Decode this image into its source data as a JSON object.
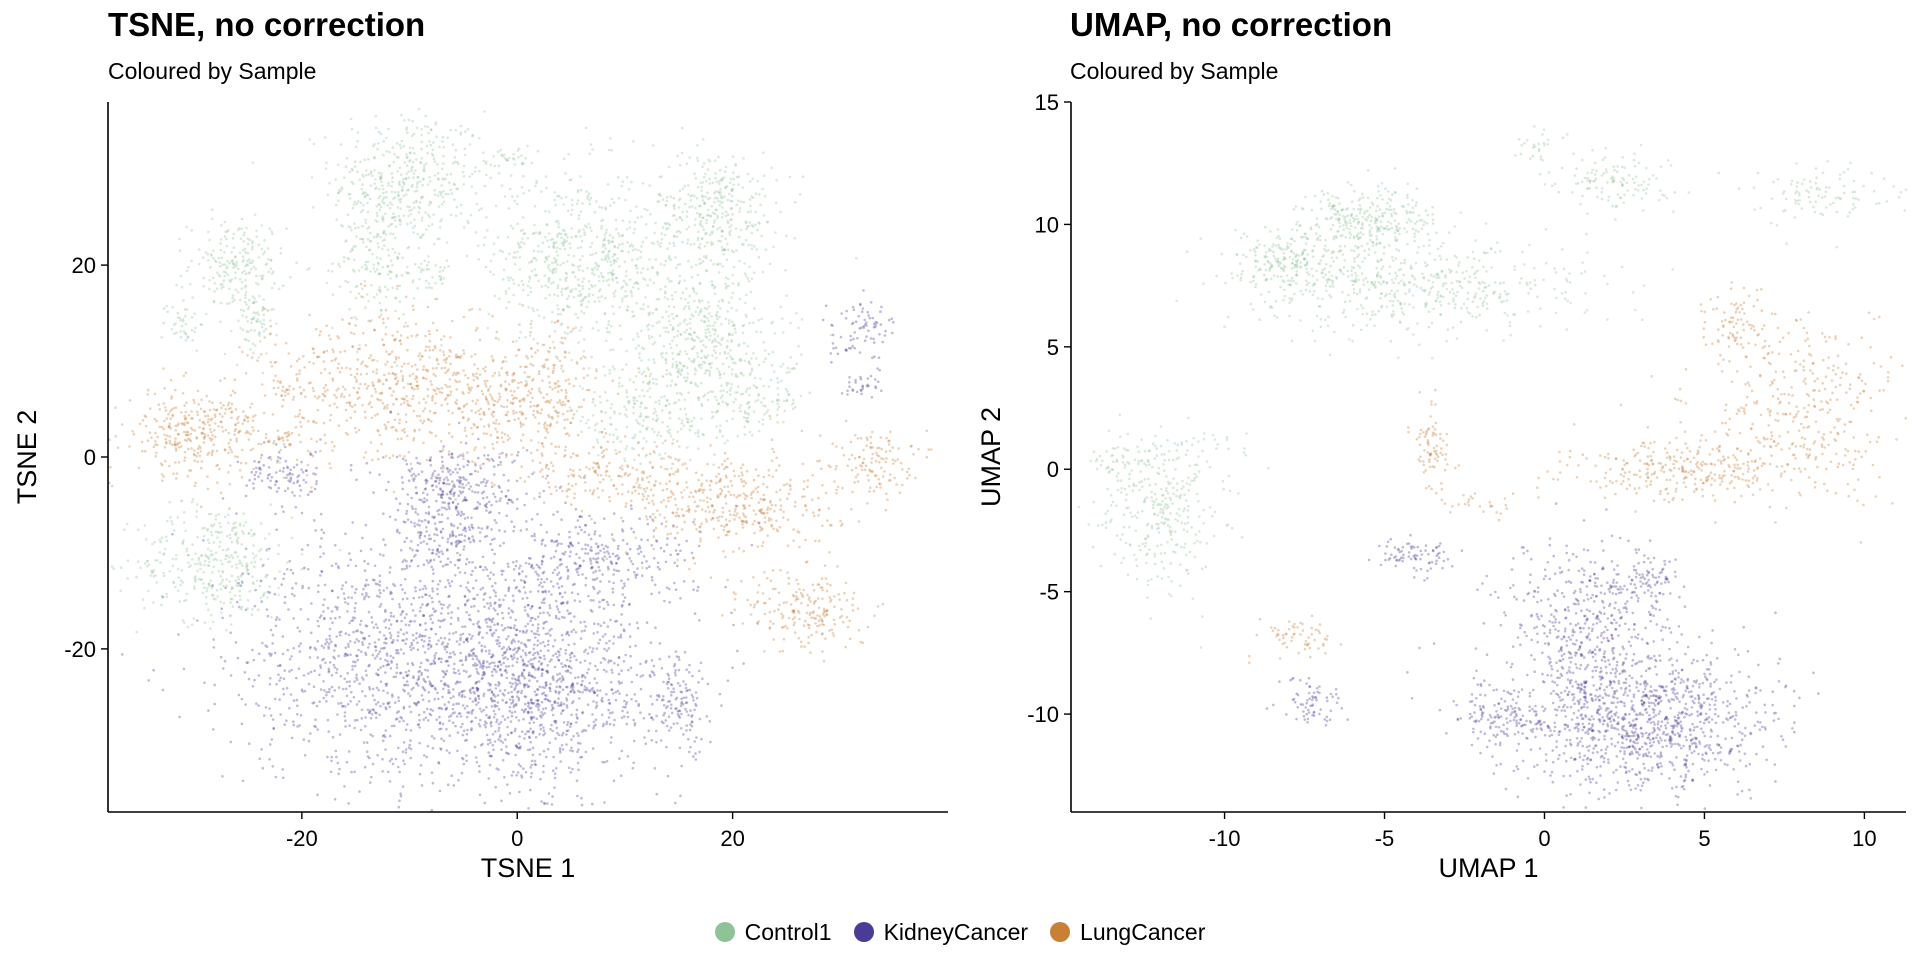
{
  "colors": {
    "Control1": "#8fc297",
    "KidneyCancer": "#483c94",
    "LungCancer": "#c87f36"
  },
  "legend": [
    {
      "label": "Control1",
      "key": "Control1"
    },
    {
      "label": "KidneyCancer",
      "key": "KidneyCancer"
    },
    {
      "label": "LungCancer",
      "key": "LungCancer"
    }
  ],
  "chart_data": [
    {
      "type": "scatter",
      "title": "TSNE, no correction",
      "subtitle": "Coloured by Sample",
      "xlabel": "TSNE 1",
      "ylabel": "TSNE 2",
      "xlim": [
        -38,
        40
      ],
      "ylim": [
        -37,
        37
      ],
      "xticks": [
        -20,
        0,
        20
      ],
      "yticks": [
        -20,
        0,
        20
      ],
      "tick_labels_x": [
        "-20",
        "0",
        "20"
      ],
      "tick_labels_y": [
        "-20",
        "0",
        "20"
      ],
      "grid": false,
      "clusters": [
        {
          "sample": "Control1",
          "cx": -10,
          "cy": 29,
          "rx": 4.5,
          "ry": 4.5,
          "n": 380
        },
        {
          "sample": "Control1",
          "cx": -13,
          "cy": 21,
          "rx": 2.5,
          "ry": 5,
          "n": 200
        },
        {
          "sample": "Control1",
          "cx": -26,
          "cy": 20,
          "rx": 2.8,
          "ry": 3.0,
          "n": 200
        },
        {
          "sample": "Control1",
          "cx": -24.5,
          "cy": 14,
          "rx": 1.2,
          "ry": 2.5,
          "n": 70
        },
        {
          "sample": "Control1",
          "cx": -31,
          "cy": 14,
          "rx": 1.2,
          "ry": 1.8,
          "n": 40
        },
        {
          "sample": "Control1",
          "cx": -28,
          "cy": -11,
          "rx": 4.5,
          "ry": 3.8,
          "n": 360
        },
        {
          "sample": "Control1",
          "cx": 6,
          "cy": 20.5,
          "rx": 5.5,
          "ry": 6,
          "n": 650
        },
        {
          "sample": "Control1",
          "cx": 18.5,
          "cy": 25.5,
          "rx": 3.5,
          "ry": 4,
          "n": 340
        },
        {
          "sample": "Control1",
          "cx": 17,
          "cy": 12,
          "rx": 5,
          "ry": 5,
          "n": 450
        },
        {
          "sample": "Control1",
          "cx": 12,
          "cy": 4,
          "rx": 5,
          "ry": 3,
          "n": 220
        },
        {
          "sample": "Control1",
          "cx": 22,
          "cy": 6,
          "rx": 3,
          "ry": 2.5,
          "n": 120
        },
        {
          "sample": "Control1",
          "cx": -1,
          "cy": 31,
          "rx": 1.5,
          "ry": 0.8,
          "n": 30
        },
        {
          "sample": "Control1",
          "cx": -8,
          "cy": 19,
          "rx": 2,
          "ry": 1,
          "n": 40
        },
        {
          "sample": "LungCancer",
          "cx": -30,
          "cy": 2.5,
          "rx": 4,
          "ry": 2.8,
          "n": 320
        },
        {
          "sample": "LungCancer",
          "cx": -10,
          "cy": 7,
          "rx": 9,
          "ry": 5,
          "n": 700
        },
        {
          "sample": "LungCancer",
          "cx": 1,
          "cy": 6,
          "rx": 4.5,
          "ry": 4,
          "n": 250
        },
        {
          "sample": "LungCancer",
          "cx": 9,
          "cy": -2,
          "rx": 6,
          "ry": 2,
          "n": 180
        },
        {
          "sample": "LungCancer",
          "cx": 20,
          "cy": -5,
          "rx": 6,
          "ry": 3.5,
          "n": 380
        },
        {
          "sample": "LungCancer",
          "cx": 27,
          "cy": -16,
          "rx": 3.5,
          "ry": 2.8,
          "n": 200
        },
        {
          "sample": "LungCancer",
          "cx": 33,
          "cy": -0.5,
          "rx": 2.3,
          "ry": 2.2,
          "n": 120
        },
        {
          "sample": "LungCancer",
          "cx": -22,
          "cy": 2,
          "rx": 1.5,
          "ry": 0.6,
          "n": 30
        },
        {
          "sample": "LungCancer",
          "cx": -22,
          "cy": 7,
          "rx": 1,
          "ry": 0.6,
          "n": 20
        },
        {
          "sample": "KidneyCancer",
          "cx": -6,
          "cy": -3.5,
          "rx": 4,
          "ry": 3,
          "n": 320
        },
        {
          "sample": "KidneyCancer",
          "cx": -8,
          "cy": -21,
          "rx": 11,
          "ry": 8.5,
          "n": 1700
        },
        {
          "sample": "KidneyCancer",
          "cx": 3,
          "cy": -24,
          "rx": 6,
          "ry": 6,
          "n": 650
        },
        {
          "sample": "KidneyCancer",
          "cx": 7,
          "cy": -11,
          "rx": 6,
          "ry": 3,
          "n": 300
        },
        {
          "sample": "KidneyCancer",
          "cx": 15,
          "cy": -26,
          "rx": 2.2,
          "ry": 3.2,
          "n": 150
        },
        {
          "sample": "KidneyCancer",
          "cx": -21.5,
          "cy": -2,
          "rx": 2.5,
          "ry": 1.5,
          "n": 90
        },
        {
          "sample": "KidneyCancer",
          "cx": 32,
          "cy": 13,
          "rx": 1.8,
          "ry": 2,
          "n": 80
        },
        {
          "sample": "KidneyCancer",
          "cx": 32,
          "cy": 7.5,
          "rx": 1.2,
          "ry": 0.8,
          "n": 30
        },
        {
          "sample": "KidneyCancer",
          "cx": -7,
          "cy": -8.5,
          "rx": 3,
          "ry": 1.5,
          "n": 80
        }
      ]
    },
    {
      "type": "scatter",
      "title": "UMAP, no correction",
      "subtitle": "Coloured by Sample",
      "xlabel": "UMAP 1",
      "ylabel": "UMAP 2",
      "xlim": [
        -14.8,
        11.3
      ],
      "ylim": [
        -14,
        15
      ],
      "xticks": [
        -10,
        -5,
        0,
        5,
        10
      ],
      "yticks": [
        -10,
        -5,
        0,
        5,
        10,
        15
      ],
      "tick_labels_x": [
        "-10",
        "-5",
        "0",
        "5",
        "10"
      ],
      "tick_labels_y": [
        "-10",
        "-5",
        "0",
        "5",
        "10",
        "15"
      ],
      "grid": false,
      "clusters": [
        {
          "sample": "Control1",
          "cx": -5.5,
          "cy": 10.2,
          "rx": 1.3,
          "ry": 0.8,
          "n": 280
        },
        {
          "sample": "Control1",
          "cx": -8.3,
          "cy": 8.4,
          "rx": 0.9,
          "ry": 0.8,
          "n": 170
        },
        {
          "sample": "Control1",
          "cx": -3.5,
          "cy": 7.5,
          "rx": 3.2,
          "ry": 1.2,
          "n": 420
        },
        {
          "sample": "Control1",
          "cx": -6,
          "cy": 8,
          "rx": 1.5,
          "ry": 1.5,
          "n": 120
        },
        {
          "sample": "Control1",
          "cx": 2.2,
          "cy": 11.8,
          "rx": 1.2,
          "ry": 0.8,
          "n": 120
        },
        {
          "sample": "Control1",
          "cx": 8.7,
          "cy": 11.3,
          "rx": 1.3,
          "ry": 0.7,
          "n": 100
        },
        {
          "sample": "Control1",
          "cx": -0.2,
          "cy": 13.1,
          "rx": 0.35,
          "ry": 0.5,
          "n": 25
        },
        {
          "sample": "Control1",
          "cx": -12,
          "cy": -2,
          "rx": 1.2,
          "ry": 1.8,
          "n": 260
        },
        {
          "sample": "Control1",
          "cx": -13,
          "cy": 0.3,
          "rx": 0.8,
          "ry": 0.8,
          "n": 60
        },
        {
          "sample": "Control1",
          "cx": -11,
          "cy": 0.6,
          "rx": 1.2,
          "ry": 0.6,
          "n": 50
        },
        {
          "sample": "LungCancer",
          "cx": 4.5,
          "cy": 0,
          "rx": 2.3,
          "ry": 0.8,
          "n": 300
        },
        {
          "sample": "LungCancer",
          "cx": 8,
          "cy": 2.5,
          "rx": 2,
          "ry": 2.2,
          "n": 350
        },
        {
          "sample": "LungCancer",
          "cx": 6,
          "cy": 6,
          "rx": 0.6,
          "ry": 0.8,
          "n": 70
        },
        {
          "sample": "LungCancer",
          "cx": -3.5,
          "cy": 0.8,
          "rx": 0.4,
          "ry": 1.1,
          "n": 80
        },
        {
          "sample": "LungCancer",
          "cx": -2,
          "cy": -1.5,
          "rx": 0.7,
          "ry": 0.3,
          "n": 25
        },
        {
          "sample": "LungCancer",
          "cx": -7.8,
          "cy": -6.8,
          "rx": 0.7,
          "ry": 0.5,
          "n": 60
        },
        {
          "sample": "KidneyCancer",
          "cx": 3,
          "cy": -10.3,
          "rx": 2.5,
          "ry": 1.8,
          "n": 1100
        },
        {
          "sample": "KidneyCancer",
          "cx": 1.3,
          "cy": -6.5,
          "rx": 1.6,
          "ry": 2.2,
          "n": 450
        },
        {
          "sample": "KidneyCancer",
          "cx": 3.2,
          "cy": -4.8,
          "rx": 0.6,
          "ry": 0.8,
          "n": 90
        },
        {
          "sample": "KidneyCancer",
          "cx": -1.3,
          "cy": -10,
          "rx": 1,
          "ry": 0.8,
          "n": 120
        },
        {
          "sample": "KidneyCancer",
          "cx": -4,
          "cy": -3.6,
          "rx": 0.8,
          "ry": 0.5,
          "n": 80
        },
        {
          "sample": "KidneyCancer",
          "cx": -7.3,
          "cy": -9.5,
          "rx": 0.6,
          "ry": 0.6,
          "n": 70
        }
      ]
    }
  ]
}
